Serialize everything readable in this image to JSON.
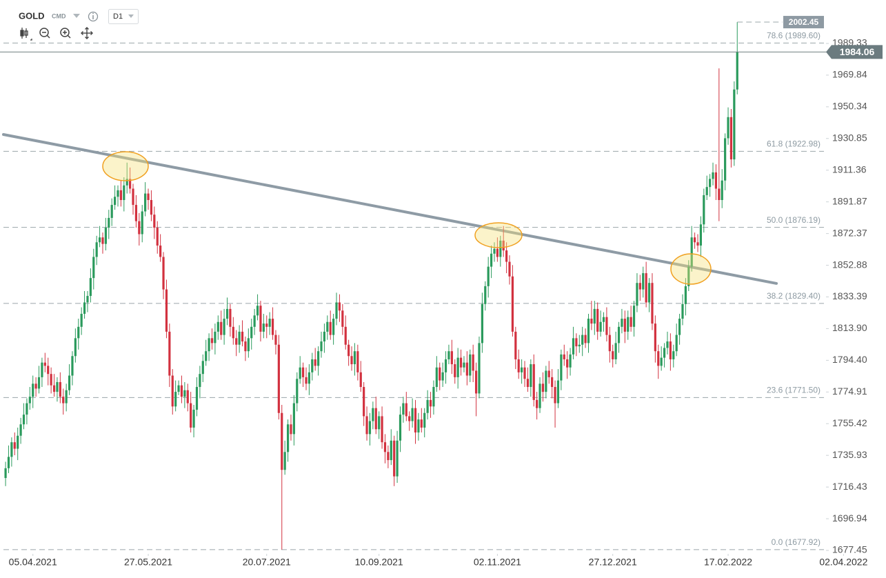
{
  "header": {
    "symbol": "GOLD",
    "exchange": "CMD",
    "timeframe": "D1"
  },
  "chart_data": {
    "type": "candlestick",
    "up_color": "#2a9a5c",
    "down_color": "#d2313f",
    "xlim": [
      -0.7,
      290
    ],
    "ylim": [
      1675.33,
      2016.05
    ],
    "xticks": [
      {
        "value": 9,
        "label": "05.04.2021"
      },
      {
        "value": 47,
        "label": "27.05.2021"
      },
      {
        "value": 86,
        "label": "20.07.2021"
      },
      {
        "value": 123,
        "label": "10.09.2021"
      },
      {
        "value": 162,
        "label": "02.11.2021"
      },
      {
        "value": 200,
        "label": "27.12.2021"
      },
      {
        "value": 238,
        "label": "17.02.2022"
      },
      {
        "value": 276,
        "label": "02.04.2022"
      }
    ],
    "yticks": [
      1989.33,
      1969.84,
      1950.34,
      1930.85,
      1911.36,
      1891.87,
      1872.37,
      1852.88,
      1833.39,
      {
        "value": 1813.9,
        "label": "1813.90"
      },
      {
        "value": 1794.4,
        "label": "1794.40"
      },
      1774.91,
      1755.42,
      1735.93,
      1716.43,
      1696.94,
      1677.45
    ],
    "fib_levels": [
      {
        "price": 1989.6,
        "label": "78.6 (1989.60)"
      },
      {
        "price": 1922.98,
        "label": "61.8 (1922.98)"
      },
      {
        "price": 1876.19,
        "label": "50.0 (1876.19)"
      },
      {
        "price": 1829.4,
        "label": "38.2 (1829.40)"
      },
      {
        "price": 1771.5,
        "label": "23.6 (1771.50)"
      },
      {
        "price": 1677.92,
        "label": "0.0 (1677.92)"
      }
    ],
    "trendline": {
      "color": "#8e9ba5",
      "x": [
        -0.7,
        253.9
      ],
      "y": [
        1933.3,
        1841.7
      ]
    },
    "open": [
      1722,
      1728,
      1735,
      1744,
      1740,
      1748,
      1755,
      1761,
      1768,
      1772,
      1780,
      1777,
      1784,
      1793,
      1791,
      1786,
      1779,
      1775,
      1781,
      1772,
      1768,
      1776,
      1785,
      1797,
      1808,
      1815,
      1823,
      1830,
      1834,
      1845,
      1858,
      1867,
      1870,
      1866,
      1876,
      1882,
      1890,
      1895,
      1899,
      1893,
      1902,
      1906,
      1900,
      1890,
      1880,
      1872,
      1886,
      1897,
      1893,
      1884,
      1876,
      1865,
      1858,
      1838,
      1812,
      1785,
      1766,
      1775,
      1779,
      1772,
      1776,
      1768,
      1753,
      1764,
      1778,
      1786,
      1794,
      1800,
      1808,
      1805,
      1812,
      1818,
      1810,
      1820,
      1826,
      1815,
      1808,
      1804,
      1812,
      1806,
      1800,
      1808,
      1815,
      1822,
      1828,
      1812,
      1817,
      1815,
      1820,
      1810,
      1804,
      1762,
      1727,
      1738,
      1755,
      1749,
      1768,
      1783,
      1790,
      1784,
      1780,
      1787,
      1795,
      1791,
      1800,
      1806,
      1812,
      1818,
      1810,
      1820,
      1830,
      1825,
      1815,
      1804,
      1797,
      1792,
      1800,
      1787,
      1778,
      1760,
      1749,
      1757,
      1765,
      1752,
      1760,
      1744,
      1738,
      1733,
      1745,
      1723,
      1745,
      1761,
      1768,
      1760,
      1757,
      1765,
      1750,
      1758,
      1753,
      1762,
      1770,
      1766,
      1778,
      1790,
      1782,
      1787,
      1795,
      1800,
      1792,
      1784,
      1796,
      1790,
      1793,
      1785,
      1798,
      1788,
      1774,
      1805,
      1829,
      1840,
      1852,
      1860,
      1863,
      1858,
      1868,
      1862,
      1855,
      1846,
      1812,
      1795,
      1787,
      1790,
      1783,
      1778,
      1792,
      1770,
      1765,
      1780,
      1775,
      1788,
      1784,
      1778,
      1768,
      1782,
      1798,
      1795,
      1790,
      1798,
      1808,
      1803,
      1804,
      1810,
      1805,
      1820,
      1817,
      1826,
      1812,
      1818,
      1821,
      1810,
      1800,
      1795,
      1805,
      1815,
      1820,
      1812,
      1821,
      1815,
      1828,
      1842,
      1838,
      1848,
      1830,
      1842,
      1817,
      1800,
      1791,
      1796,
      1802,
      1806,
      1795,
      1800,
      1810,
      1820,
      1829,
      1840,
      1852,
      1870,
      1867,
      1865,
      1878,
      1896,
      1901,
      1906,
      1910,
      1900,
      1893,
      1905,
      1931,
      1944,
      1918,
      1961
    ],
    "high": [
      1732,
      1742,
      1747,
      1750,
      1753,
      1759,
      1768,
      1771,
      1778,
      1785,
      1784,
      1791,
      1796,
      1799,
      1796,
      1790,
      1786,
      1784,
      1787,
      1777,
      1780,
      1792,
      1800,
      1814,
      1820,
      1827,
      1837,
      1837,
      1851,
      1863,
      1871,
      1877,
      1873,
      1882,
      1887,
      1894,
      1902,
      1902,
      1905,
      1907,
      1916,
      1913,
      1903,
      1896,
      1885,
      1890,
      1904,
      1900,
      1899,
      1889,
      1880,
      1872,
      1861,
      1844,
      1817,
      1789,
      1782,
      1782,
      1785,
      1781,
      1780,
      1775,
      1767,
      1784,
      1791,
      1798,
      1807,
      1811,
      1814,
      1817,
      1822,
      1825,
      1826,
      1833,
      1829,
      1821,
      1813,
      1816,
      1819,
      1809,
      1814,
      1820,
      1826,
      1835,
      1831,
      1823,
      1822,
      1824,
      1827,
      1813,
      1810,
      1767,
      1745,
      1758,
      1761,
      1773,
      1787,
      1797,
      1793,
      1790,
      1792,
      1799,
      1802,
      1803,
      1812,
      1817,
      1822,
      1825,
      1823,
      1836,
      1835,
      1829,
      1822,
      1807,
      1803,
      1805,
      1804,
      1794,
      1781,
      1766,
      1762,
      1769,
      1772,
      1763,
      1766,
      1749,
      1742,
      1752,
      1748,
      1751,
      1766,
      1772,
      1775,
      1763,
      1771,
      1770,
      1762,
      1765,
      1765,
      1776,
      1775,
      1782,
      1797,
      1793,
      1793,
      1800,
      1804,
      1807,
      1795,
      1802,
      1801,
      1797,
      1800,
      1801,
      1804,
      1793,
      1809,
      1836,
      1843,
      1858,
      1865,
      1867,
      1870,
      1871,
      1877,
      1867,
      1859,
      1853,
      1815,
      1801,
      1795,
      1794,
      1790,
      1795,
      1798,
      1775,
      1784,
      1787,
      1791,
      1794,
      1789,
      1782,
      1789,
      1801,
      1804,
      1800,
      1802,
      1815,
      1811,
      1810,
      1815,
      1814,
      1823,
      1831,
      1831,
      1830,
      1825,
      1824,
      1827,
      1815,
      1804,
      1812,
      1818,
      1826,
      1825,
      1825,
      1828,
      1831,
      1848,
      1847,
      1852,
      1855,
      1845,
      1848,
      1822,
      1804,
      1803,
      1805,
      1812,
      1811,
      1804,
      1817,
      1823,
      1835,
      1845,
      1856,
      1877,
      1873,
      1872,
      1883,
      1900,
      1908,
      1909,
      1916,
      1915,
      1974,
      1912,
      1934,
      1950,
      1949,
      1966,
      2002.45
    ],
    "low": [
      1717,
      1725,
      1729,
      1736,
      1733,
      1743,
      1752,
      1755,
      1764,
      1765,
      1772,
      1774,
      1778,
      1787,
      1779,
      1774,
      1772,
      1769,
      1768,
      1761,
      1763,
      1773,
      1779,
      1793,
      1801,
      1810,
      1820,
      1824,
      1830,
      1838,
      1853,
      1864,
      1860,
      1862,
      1869,
      1877,
      1887,
      1889,
      1889,
      1886,
      1897,
      1897,
      1884,
      1876,
      1865,
      1867,
      1883,
      1887,
      1880,
      1869,
      1860,
      1855,
      1832,
      1808,
      1778,
      1761,
      1763,
      1773,
      1768,
      1765,
      1763,
      1750,
      1747,
      1760,
      1771,
      1781,
      1791,
      1794,
      1801,
      1798,
      1807,
      1807,
      1804,
      1816,
      1809,
      1804,
      1797,
      1799,
      1803,
      1794,
      1796,
      1801,
      1810,
      1819,
      1806,
      1808,
      1808,
      1810,
      1807,
      1798,
      1758,
      1678,
      1724,
      1732,
      1745,
      1742,
      1763,
      1780,
      1778,
      1776,
      1773,
      1782,
      1788,
      1785,
      1796,
      1799,
      1807,
      1807,
      1804,
      1816,
      1818,
      1810,
      1801,
      1791,
      1788,
      1785,
      1782,
      1775,
      1754,
      1745,
      1742,
      1752,
      1749,
      1746,
      1740,
      1731,
      1728,
      1730,
      1717,
      1719,
      1738,
      1756,
      1757,
      1751,
      1753,
      1743,
      1745,
      1750,
      1747,
      1758,
      1759,
      1761,
      1775,
      1776,
      1778,
      1780,
      1792,
      1786,
      1780,
      1777,
      1785,
      1787,
      1779,
      1781,
      1781,
      1760,
      1771,
      1799,
      1825,
      1833,
      1845,
      1855,
      1855,
      1852,
      1858,
      1848,
      1841,
      1809,
      1789,
      1783,
      1780,
      1778,
      1775,
      1772,
      1766,
      1758,
      1762,
      1769,
      1771,
      1780,
      1771,
      1753,
      1765,
      1776,
      1791,
      1783,
      1785,
      1795,
      1797,
      1799,
      1797,
      1802,
      1799,
      1813,
      1810,
      1807,
      1809,
      1812,
      1806,
      1793,
      1790,
      1792,
      1799,
      1811,
      1805,
      1807,
      1812,
      1809,
      1824,
      1831,
      1833,
      1827,
      1824,
      1813,
      1793,
      1783,
      1788,
      1790,
      1798,
      1788,
      1790,
      1797,
      1804,
      1816,
      1822,
      1837,
      1849,
      1863,
      1861,
      1858,
      1873,
      1893,
      1895,
      1902,
      1893,
      1880,
      1888,
      1899,
      1927,
      1913,
      1914,
      1958
    ],
    "close": [
      1728,
      1735,
      1744,
      1740,
      1748,
      1755,
      1761,
      1768,
      1772,
      1780,
      1777,
      1784,
      1793,
      1791,
      1786,
      1779,
      1775,
      1781,
      1772,
      1768,
      1776,
      1785,
      1797,
      1808,
      1815,
      1823,
      1830,
      1834,
      1845,
      1858,
      1867,
      1870,
      1866,
      1876,
      1882,
      1890,
      1895,
      1899,
      1893,
      1902,
      1906,
      1900,
      1890,
      1880,
      1872,
      1886,
      1897,
      1893,
      1884,
      1876,
      1865,
      1858,
      1838,
      1812,
      1785,
      1766,
      1775,
      1779,
      1772,
      1776,
      1768,
      1753,
      1764,
      1778,
      1786,
      1794,
      1800,
      1808,
      1805,
      1812,
      1818,
      1810,
      1820,
      1826,
      1815,
      1808,
      1804,
      1812,
      1806,
      1800,
      1808,
      1815,
      1822,
      1828,
      1812,
      1817,
      1815,
      1820,
      1810,
      1804,
      1762,
      1727,
      1738,
      1755,
      1749,
      1768,
      1783,
      1790,
      1784,
      1780,
      1787,
      1795,
      1791,
      1800,
      1806,
      1812,
      1818,
      1810,
      1820,
      1830,
      1825,
      1815,
      1804,
      1797,
      1792,
      1800,
      1787,
      1778,
      1760,
      1749,
      1757,
      1765,
      1752,
      1760,
      1744,
      1738,
      1733,
      1745,
      1723,
      1745,
      1761,
      1768,
      1760,
      1757,
      1765,
      1750,
      1758,
      1753,
      1762,
      1770,
      1766,
      1778,
      1790,
      1782,
      1787,
      1795,
      1800,
      1792,
      1784,
      1796,
      1790,
      1793,
      1785,
      1798,
      1788,
      1774,
      1805,
      1829,
      1840,
      1852,
      1860,
      1863,
      1858,
      1868,
      1862,
      1855,
      1846,
      1812,
      1795,
      1787,
      1790,
      1783,
      1778,
      1792,
      1770,
      1765,
      1780,
      1775,
      1788,
      1784,
      1778,
      1768,
      1782,
      1798,
      1795,
      1790,
      1798,
      1808,
      1803,
      1804,
      1810,
      1805,
      1820,
      1817,
      1826,
      1812,
      1818,
      1821,
      1810,
      1800,
      1795,
      1805,
      1815,
      1820,
      1812,
      1821,
      1815,
      1828,
      1842,
      1838,
      1848,
      1830,
      1842,
      1817,
      1800,
      1791,
      1796,
      1802,
      1806,
      1795,
      1800,
      1810,
      1820,
      1829,
      1840,
      1852,
      1870,
      1867,
      1865,
      1878,
      1896,
      1901,
      1906,
      1910,
      1900,
      1893,
      1905,
      1931,
      1944,
      1918,
      1961,
      1984.06
    ]
  }
}
